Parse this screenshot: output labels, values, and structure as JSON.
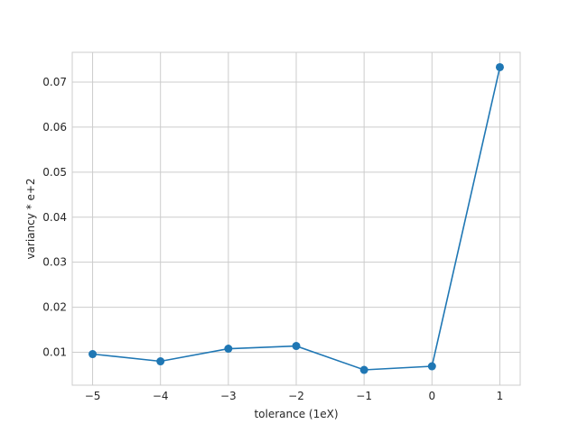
{
  "chart_data": {
    "type": "line",
    "title": "",
    "xlabel": "tolerance (1eX)",
    "ylabel": "variancy * e+2",
    "x": [
      -5,
      -4,
      -3,
      -2,
      -1,
      0,
      1
    ],
    "series": [
      {
        "values": [
          0.0096,
          0.008,
          0.0108,
          0.0114,
          0.0061,
          0.0069,
          0.0733
        ]
      }
    ],
    "xticks": [
      -5,
      -4,
      -3,
      -2,
      -1,
      0,
      1
    ],
    "xtick_labels": [
      "−5",
      "−4",
      "−3",
      "−2",
      "−1",
      "0",
      "1"
    ],
    "yticks": [
      0.01,
      0.02,
      0.03,
      0.04,
      0.05,
      0.06,
      0.07
    ],
    "ytick_labels": [
      "0.01",
      "0.02",
      "0.03",
      "0.04",
      "0.05",
      "0.06",
      "0.07"
    ],
    "xlim": [
      -5.3,
      1.3
    ],
    "ylim": [
      0.0027,
      0.0766
    ],
    "grid": true,
    "line_color": "#1f77b4",
    "grid_color": "#cccccc"
  }
}
